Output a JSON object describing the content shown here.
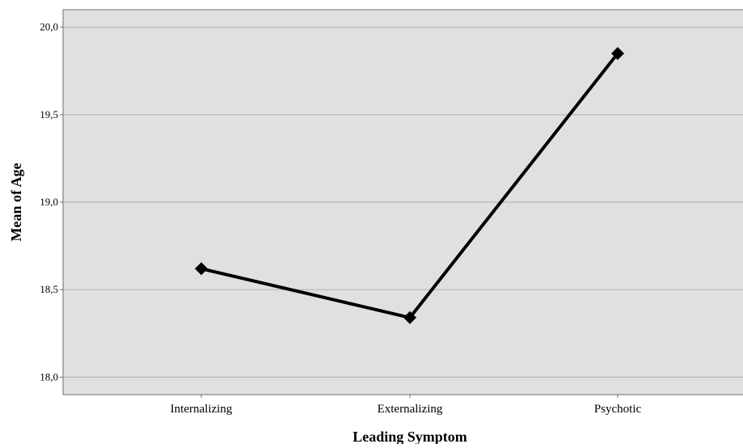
{
  "chart_data": {
    "type": "line",
    "title": "",
    "xlabel": "Leading Symptom",
    "ylabel": "Mean of Age",
    "categories": [
      "Internalizing",
      "Externalizing",
      "Psychotic"
    ],
    "series": [
      {
        "values": [
          18.62,
          18.34,
          19.85
        ]
      }
    ],
    "ylim": [
      17.9,
      20.1
    ],
    "yticks": [
      18.0,
      18.5,
      19.0,
      19.5,
      20.0
    ],
    "ytick_labels": [
      "18,0",
      "18,5",
      "19,0",
      "19,5",
      "20,0"
    ],
    "grid": true,
    "legend": "none",
    "marker": "diamond",
    "colors": {
      "plot_background": "#e0e0e0",
      "gridline": "#b8b8b8",
      "line": "#000000",
      "frame": "#6e6e6e"
    }
  }
}
